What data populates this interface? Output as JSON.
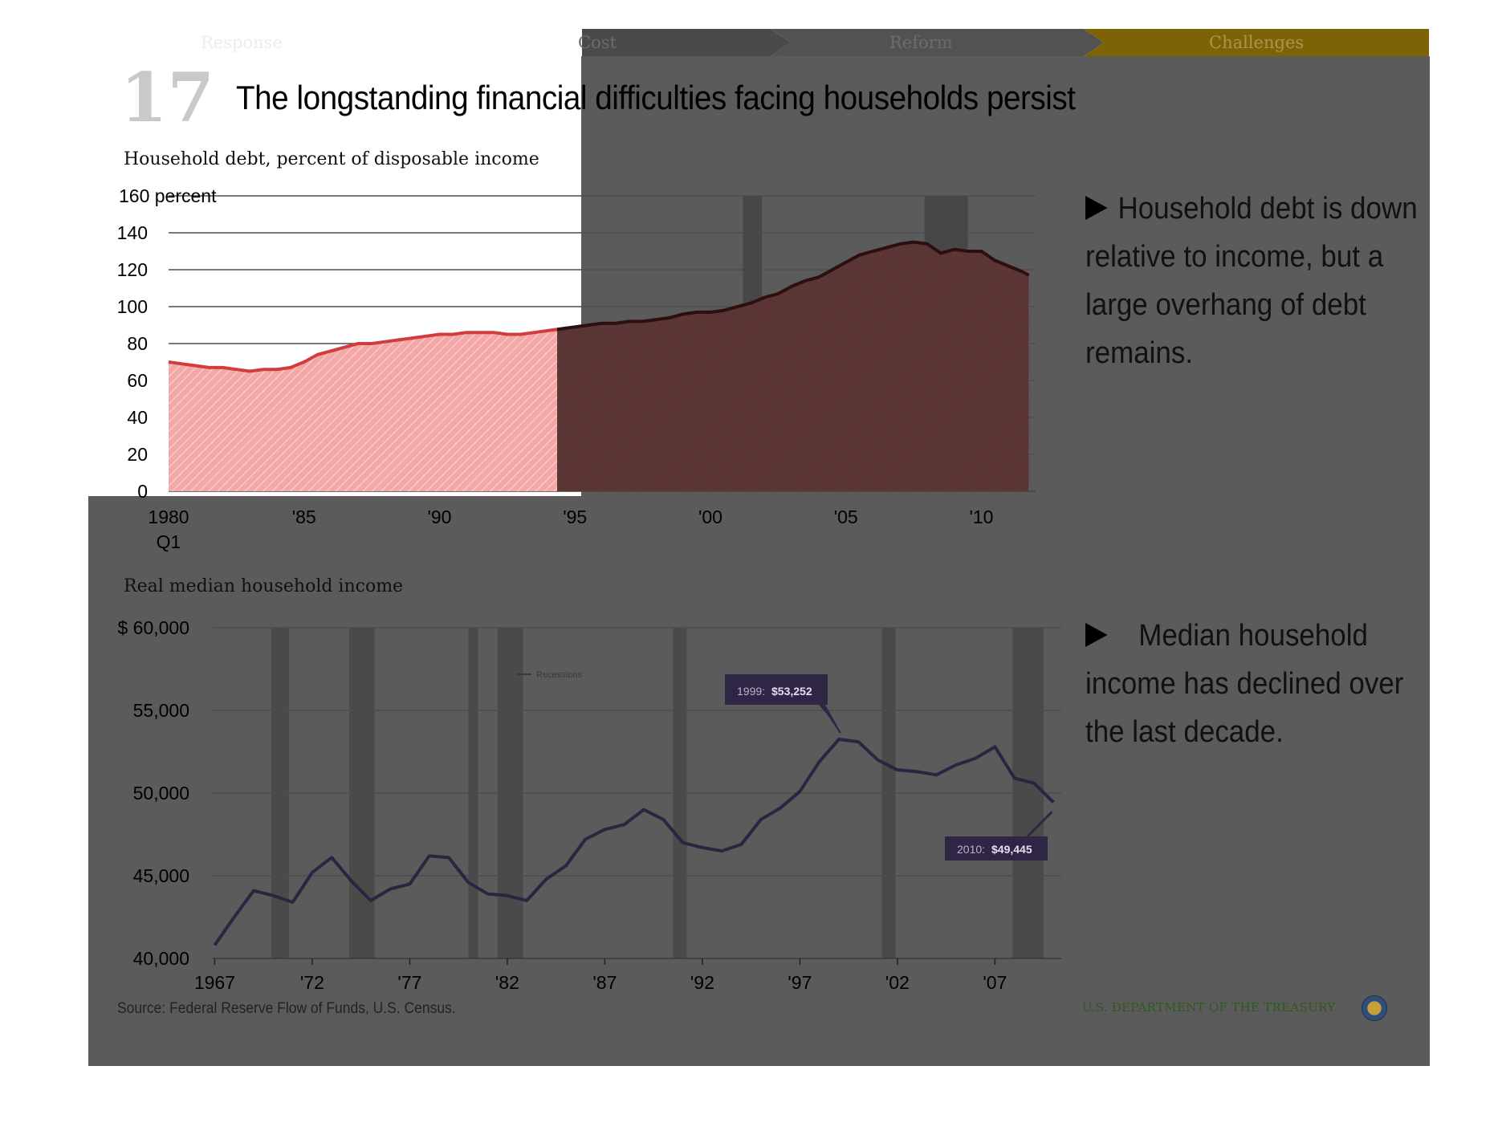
{
  "nav": {
    "tabs": [
      {
        "label": "Response"
      },
      {
        "label": "Cost"
      },
      {
        "label": "Reform"
      },
      {
        "label": "Challenges"
      }
    ],
    "active_color": "#7d6305"
  },
  "slide": {
    "number": "17",
    "title": "The longstanding financial difficulties facing households persist"
  },
  "debt_chart_heading": "Household debt, percent of disposable income",
  "income_chart_heading": "Real median household income",
  "bullets": [
    {
      "text": "Household debt is down relative to income, but a large overhang of debt remains."
    },
    {
      "text": "Median household income has declined over the last decade."
    }
  ],
  "footer": {
    "source": "Source: Federal Reserve Flow of Funds, U.S. Census.",
    "department": "U.S. DEPARTMENT OF THE TREASURY"
  },
  "chart_data": [
    {
      "type": "area",
      "title": "Household debt, percent of disposable income",
      "ylabel": "percent",
      "ylim": [
        0,
        160
      ],
      "yticks": [
        "160 percent",
        "140",
        "120",
        "100",
        "80",
        "60",
        "40",
        "20",
        "0"
      ],
      "xticks": [
        {
          "label": "1980",
          "sub": "Q1",
          "x": 1980
        },
        {
          "label": "'85",
          "x": 1985
        },
        {
          "label": "'90",
          "x": 1990
        },
        {
          "label": "'95",
          "x": 1995
        },
        {
          "label": "'00",
          "x": 2000
        },
        {
          "label": "'05",
          "x": 2005
        },
        {
          "label": "'10",
          "x": 2010
        }
      ],
      "xlim": [
        1980,
        2012
      ],
      "recessions": [
        [
          2001.2,
          2001.9
        ],
        [
          2007.9,
          2009.5
        ]
      ],
      "fill_color": "#f4a7a7",
      "line_color": "#d23c3c",
      "x": [
        1980.0,
        1980.5,
        1981.0,
        1981.5,
        1982.0,
        1982.5,
        1983.0,
        1983.5,
        1984.0,
        1984.5,
        1985.0,
        1985.5,
        1986.0,
        1986.5,
        1987.0,
        1987.5,
        1988.0,
        1988.5,
        1989.0,
        1989.5,
        1990.0,
        1990.5,
        1991.0,
        1991.5,
        1992.0,
        1992.5,
        1993.0,
        1993.5,
        1994.0,
        1994.5,
        1995.0,
        1995.5,
        1996.0,
        1996.5,
        1997.0,
        1997.5,
        1998.0,
        1998.5,
        1999.0,
        1999.5,
        2000.0,
        2000.5,
        2001.0,
        2001.5,
        2002.0,
        2002.5,
        2003.0,
        2003.5,
        2004.0,
        2004.5,
        2005.0,
        2005.5,
        2006.0,
        2006.5,
        2007.0,
        2007.5,
        2008.0,
        2008.5,
        2009.0,
        2009.5,
        2010.0,
        2010.5,
        2011.0,
        2011.5,
        2011.75
      ],
      "y": [
        70,
        69,
        68,
        67,
        67,
        66,
        65,
        66,
        66,
        67,
        70,
        74,
        76,
        78,
        80,
        80,
        81,
        82,
        83,
        84,
        85,
        85,
        86,
        86,
        86,
        85,
        85,
        86,
        87,
        88,
        89,
        90,
        91,
        91,
        92,
        92,
        93,
        94,
        96,
        97,
        97,
        98,
        100,
        102,
        105,
        107,
        111,
        114,
        116,
        120,
        124,
        128,
        130,
        132,
        134,
        135,
        134,
        129,
        131,
        130,
        130,
        125,
        122,
        119,
        117
      ]
    },
    {
      "type": "line",
      "title": "Real median household income",
      "ylim": [
        40000,
        60000
      ],
      "yticks": [
        "$ 60,000",
        "55,000",
        "50,000",
        "45,000",
        "40,000"
      ],
      "xticks": [
        {
          "label": "1967",
          "x": 1967
        },
        {
          "label": "'72",
          "x": 1972
        },
        {
          "label": "'77",
          "x": 1977
        },
        {
          "label": "'82",
          "x": 1982
        },
        {
          "label": "'87",
          "x": 1987
        },
        {
          "label": "'92",
          "x": 1992
        },
        {
          "label": "'97",
          "x": 1997
        },
        {
          "label": "'02",
          "x": 2002
        },
        {
          "label": "'07",
          "x": 2007
        }
      ],
      "xlim": [
        1966.9,
        2010.4
      ],
      "legend": "Recessions",
      "recessions": [
        [
          1969.9,
          1970.8
        ],
        [
          1973.9,
          1975.2
        ],
        [
          1980.0,
          1980.5
        ],
        [
          1981.5,
          1982.8
        ],
        [
          1990.5,
          1991.2
        ],
        [
          2001.2,
          2001.9
        ],
        [
          2007.9,
          2009.5
        ]
      ],
      "line_color": "#2c2440",
      "callouts": [
        {
          "year_label": "1999:",
          "value_label": "$53,252",
          "x": 1999,
          "y": 53252
        },
        {
          "year_label": "2010:",
          "value_label": "$49,445",
          "x": 2010,
          "y": 49445
        }
      ],
      "x": [
        1967,
        1968,
        1969,
        1970,
        1971,
        1972,
        1973,
        1974,
        1975,
        1976,
        1977,
        1978,
        1979,
        1980,
        1981,
        1982,
        1983,
        1984,
        1985,
        1986,
        1987,
        1988,
        1989,
        1990,
        1991,
        1992,
        1993,
        1994,
        1995,
        1996,
        1997,
        1998,
        1999,
        2000,
        2001,
        2002,
        2003,
        2004,
        2005,
        2006,
        2007,
        2008,
        2009,
        2010
      ],
      "y": [
        40800,
        42500,
        44100,
        43800,
        43400,
        45200,
        46100,
        44700,
        43500,
        44200,
        44500,
        46200,
        46100,
        44600,
        43900,
        43800,
        43500,
        44800,
        45600,
        47200,
        47800,
        48100,
        49000,
        48400,
        47000,
        46700,
        46500,
        46900,
        48400,
        49100,
        50100,
        51900,
        53252,
        53100,
        52000,
        51400,
        51300,
        51100,
        51700,
        52100,
        52800,
        50900,
        50600,
        49445
      ]
    }
  ]
}
